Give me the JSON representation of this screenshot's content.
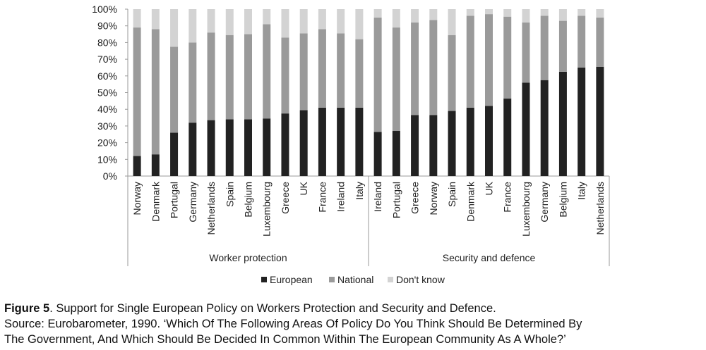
{
  "chart_data": {
    "type": "bar",
    "stacked": true,
    "percent": true,
    "ylim": [
      0,
      100
    ],
    "yticks": [
      "0%",
      "10%",
      "20%",
      "30%",
      "40%",
      "50%",
      "60%",
      "70%",
      "80%",
      "90%",
      "100%"
    ],
    "grid": false,
    "legend_position": "bottom",
    "groups": [
      {
        "name": "Worker protection",
        "categories": [
          "Norway",
          "Denmark",
          "Portugal",
          "Germany",
          "Netherlands",
          "Spain",
          "Belgium",
          "Luxembourg",
          "Greece",
          "UK",
          "France",
          "Ireland",
          "Italy"
        ],
        "series": [
          {
            "name": "European",
            "values": [
              12,
              13,
              26,
              32,
              33.5,
              34,
              34,
              34.5,
              37.5,
              39.5,
              41,
              41,
              41
            ]
          },
          {
            "name": "National",
            "values": [
              77,
              75,
              51.5,
              48,
              52.5,
              50.5,
              51,
              56.5,
              45.5,
              46,
              47,
              44.5,
              41
            ]
          },
          {
            "name": "Don't know",
            "values": [
              11,
              12,
              22.5,
              20,
              14,
              15.5,
              15,
              9,
              17,
              14.5,
              12,
              14.5,
              18
            ]
          }
        ]
      },
      {
        "name": "Security and defence",
        "categories": [
          "Ireland",
          "Portugal",
          "Greece",
          "Norway",
          "Spain",
          "Denmark",
          "UK",
          "France",
          "Luxembourg",
          "Germany",
          "Belgium",
          "Italy",
          "Netherlands"
        ],
        "series": [
          {
            "name": "European",
            "values": [
              26.5,
              27,
              36.5,
              36.5,
              39,
              41,
              42,
              46.5,
              56,
              57.5,
              62.5,
              65,
              65.5
            ]
          },
          {
            "name": "National",
            "values": [
              68.5,
              62,
              55.5,
              57,
              45.5,
              55,
              55,
              49,
              36,
              38.5,
              30.5,
              31,
              29.5
            ]
          },
          {
            "name": "Don't know",
            "values": [
              5,
              11,
              8,
              6.5,
              15.5,
              4,
              3,
              4.5,
              8,
              4,
              7,
              4,
              5
            ]
          }
        ]
      }
    ],
    "colors": {
      "European": "#222222",
      "National": "#9a9a9a",
      "Don't know": "#d3d3d3"
    }
  },
  "caption": {
    "label": "Figure 5",
    "title": ". Support for Single European Policy on Workers Protection and Security and Defence.",
    "line2": "Source: Eurobarometer, 1990. ‘Which Of The Following Areas Of Policy Do You Think Should Be Determined By",
    "line3": "The Government, And Which Should Be Decided In Common Within The European Community As A Whole?’"
  }
}
